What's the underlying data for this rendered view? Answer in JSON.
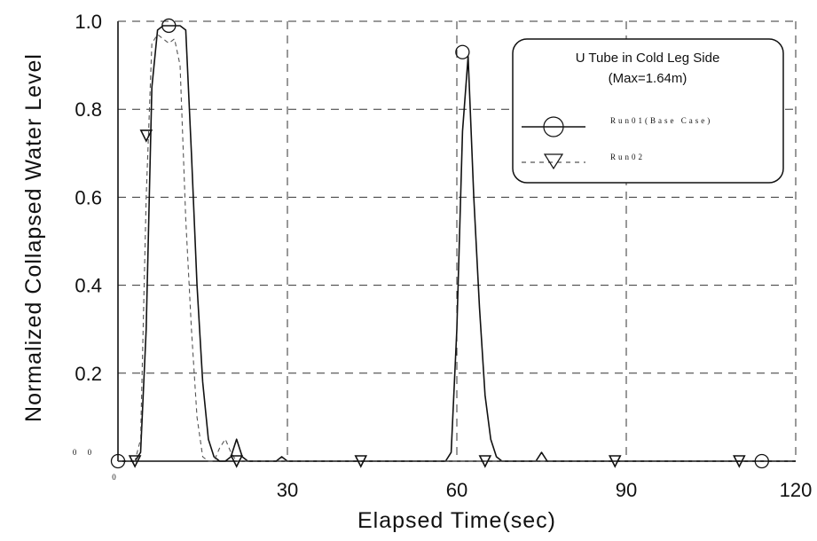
{
  "chart_data": {
    "type": "line",
    "title": "",
    "xlabel": "Elapsed Time(sec)",
    "ylabel": "Normalized Collapsed Water Level",
    "xlim": [
      0,
      120
    ],
    "ylim": [
      0,
      1.0
    ],
    "x_ticks": [
      30,
      60,
      90,
      120
    ],
    "x_tick_labels": [
      "30",
      "60",
      "90",
      "120"
    ],
    "y_ticks": [
      0.2,
      0.4,
      0.6,
      0.8,
      1.0
    ],
    "y_tick_labels": [
      "0.2",
      "0.4",
      "0.6",
      "0.8",
      "1.0"
    ],
    "x_origin_label": "0",
    "y_origin_label": "0 0",
    "grid": true,
    "legend": {
      "placement": "top-right",
      "title": "U Tube in Cold Leg Side",
      "subtitle": "(Max=1.64m)"
    },
    "series": [
      {
        "name": "Run01(Base Case)",
        "line_style": "solid",
        "marker": "circle",
        "color": "#111111",
        "x": [
          0,
          2,
          3,
          4,
          5,
          6,
          7,
          8,
          9,
          10,
          11,
          12,
          13,
          14,
          15,
          16,
          17,
          18,
          19,
          20,
          21,
          22,
          23,
          25,
          28,
          29,
          30,
          32,
          40,
          50,
          55,
          58,
          59,
          60,
          61,
          62,
          63,
          64,
          65,
          66,
          67,
          68,
          70,
          74,
          75,
          76,
          78,
          80,
          90,
          100,
          110,
          114,
          120
        ],
        "y": [
          0,
          0,
          0,
          0.02,
          0.3,
          0.85,
          0.98,
          0.99,
          0.99,
          0.99,
          0.99,
          0.98,
          0.7,
          0.4,
          0.18,
          0.05,
          0.01,
          0,
          0,
          0.01,
          0.05,
          0.01,
          0,
          0,
          0,
          0.01,
          0,
          0,
          0,
          0,
          0,
          0,
          0.02,
          0.3,
          0.75,
          0.92,
          0.6,
          0.35,
          0.15,
          0.05,
          0.01,
          0,
          0,
          0,
          0.02,
          0,
          0,
          0,
          0,
          0,
          0,
          0,
          0
        ],
        "marker_x": [
          0,
          9,
          61,
          114
        ],
        "marker_y": [
          0,
          0.99,
          0.93,
          0
        ]
      },
      {
        "name": "Run02",
        "line_style": "dashed",
        "marker": "triangle-down",
        "color": "#555555",
        "x": [
          0,
          3,
          4,
          5,
          6,
          7,
          8,
          9,
          10,
          11,
          12,
          13,
          14,
          15,
          16,
          17,
          18,
          19,
          20,
          21,
          22,
          23,
          25,
          30,
          40,
          50,
          60,
          70,
          80,
          90,
          100,
          110,
          120
        ],
        "y": [
          0,
          0,
          0.05,
          0.6,
          0.95,
          0.97,
          0.96,
          0.95,
          0.96,
          0.9,
          0.55,
          0.3,
          0.1,
          0.01,
          0,
          0,
          0.03,
          0.05,
          0.02,
          0,
          0,
          0,
          0,
          0,
          0,
          0,
          0,
          0,
          0,
          0,
          0,
          0,
          0
        ],
        "marker_x": [
          3,
          5,
          21,
          43,
          65,
          88,
          110
        ],
        "marker_y": [
          0,
          0.74,
          0,
          0,
          0,
          0,
          0
        ]
      }
    ]
  }
}
